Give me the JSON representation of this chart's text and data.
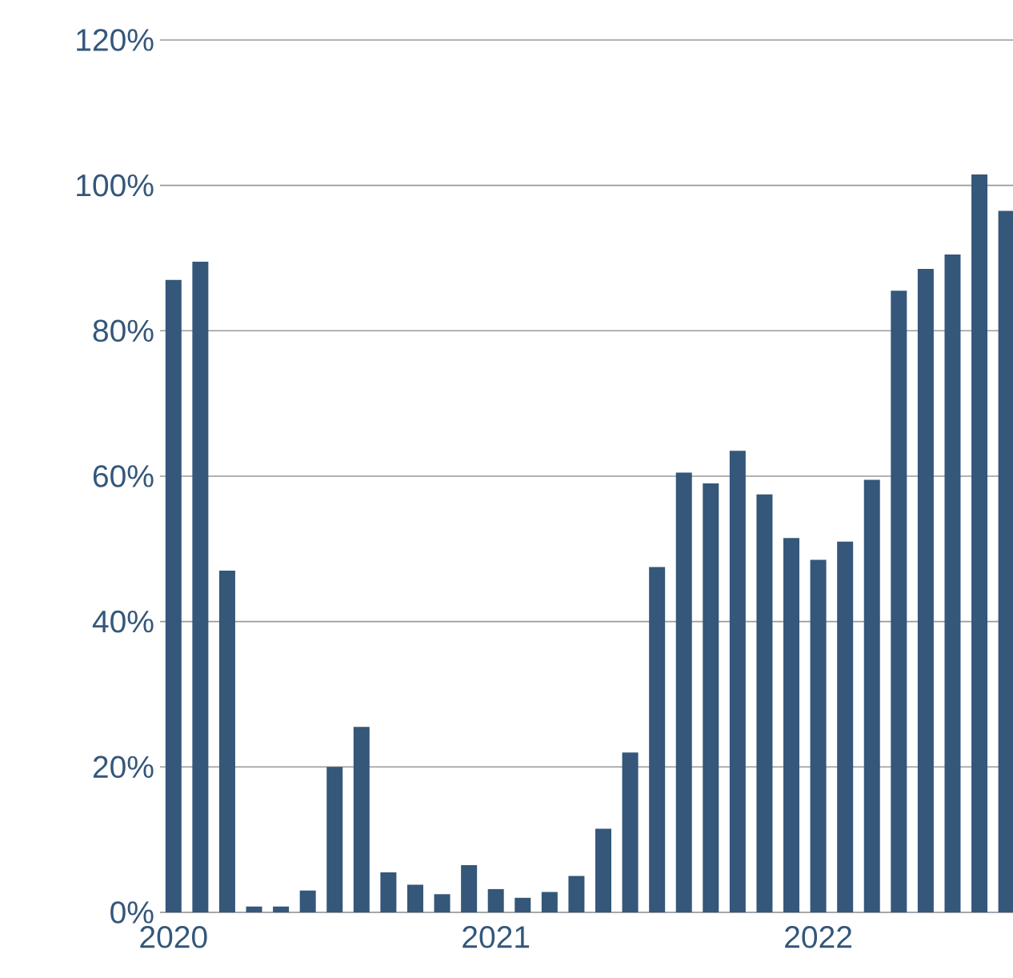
{
  "chart_data": {
    "type": "bar",
    "color": "#34577a",
    "categories": [
      "2020",
      null,
      null,
      null,
      null,
      null,
      null,
      null,
      null,
      null,
      null,
      null,
      "2021",
      null,
      null,
      null,
      null,
      null,
      null,
      null,
      null,
      null,
      null,
      null,
      "2022",
      null,
      null,
      null,
      null,
      null,
      null,
      null
    ],
    "values": [
      87,
      89.5,
      47,
      0.8,
      0.8,
      3,
      20,
      25.5,
      5.5,
      3.8,
      2.5,
      6.5,
      3.2,
      2,
      2.8,
      5,
      11.5,
      22,
      47.5,
      60.5,
      59,
      63.5,
      57.5,
      51.5,
      48.5,
      51,
      59.5,
      85.5,
      88.5,
      90.5,
      101.5,
      96.5
    ],
    "ylim": [
      0,
      120
    ],
    "yticks": [
      {
        "value": 0,
        "label": "0%"
      },
      {
        "value": 20,
        "label": "20%"
      },
      {
        "value": 40,
        "label": "40%"
      },
      {
        "value": 60,
        "label": "60%"
      },
      {
        "value": 80,
        "label": "80%"
      },
      {
        "value": 100,
        "label": "100%"
      },
      {
        "value": 120,
        "label": "120%"
      }
    ],
    "grid": "y"
  }
}
